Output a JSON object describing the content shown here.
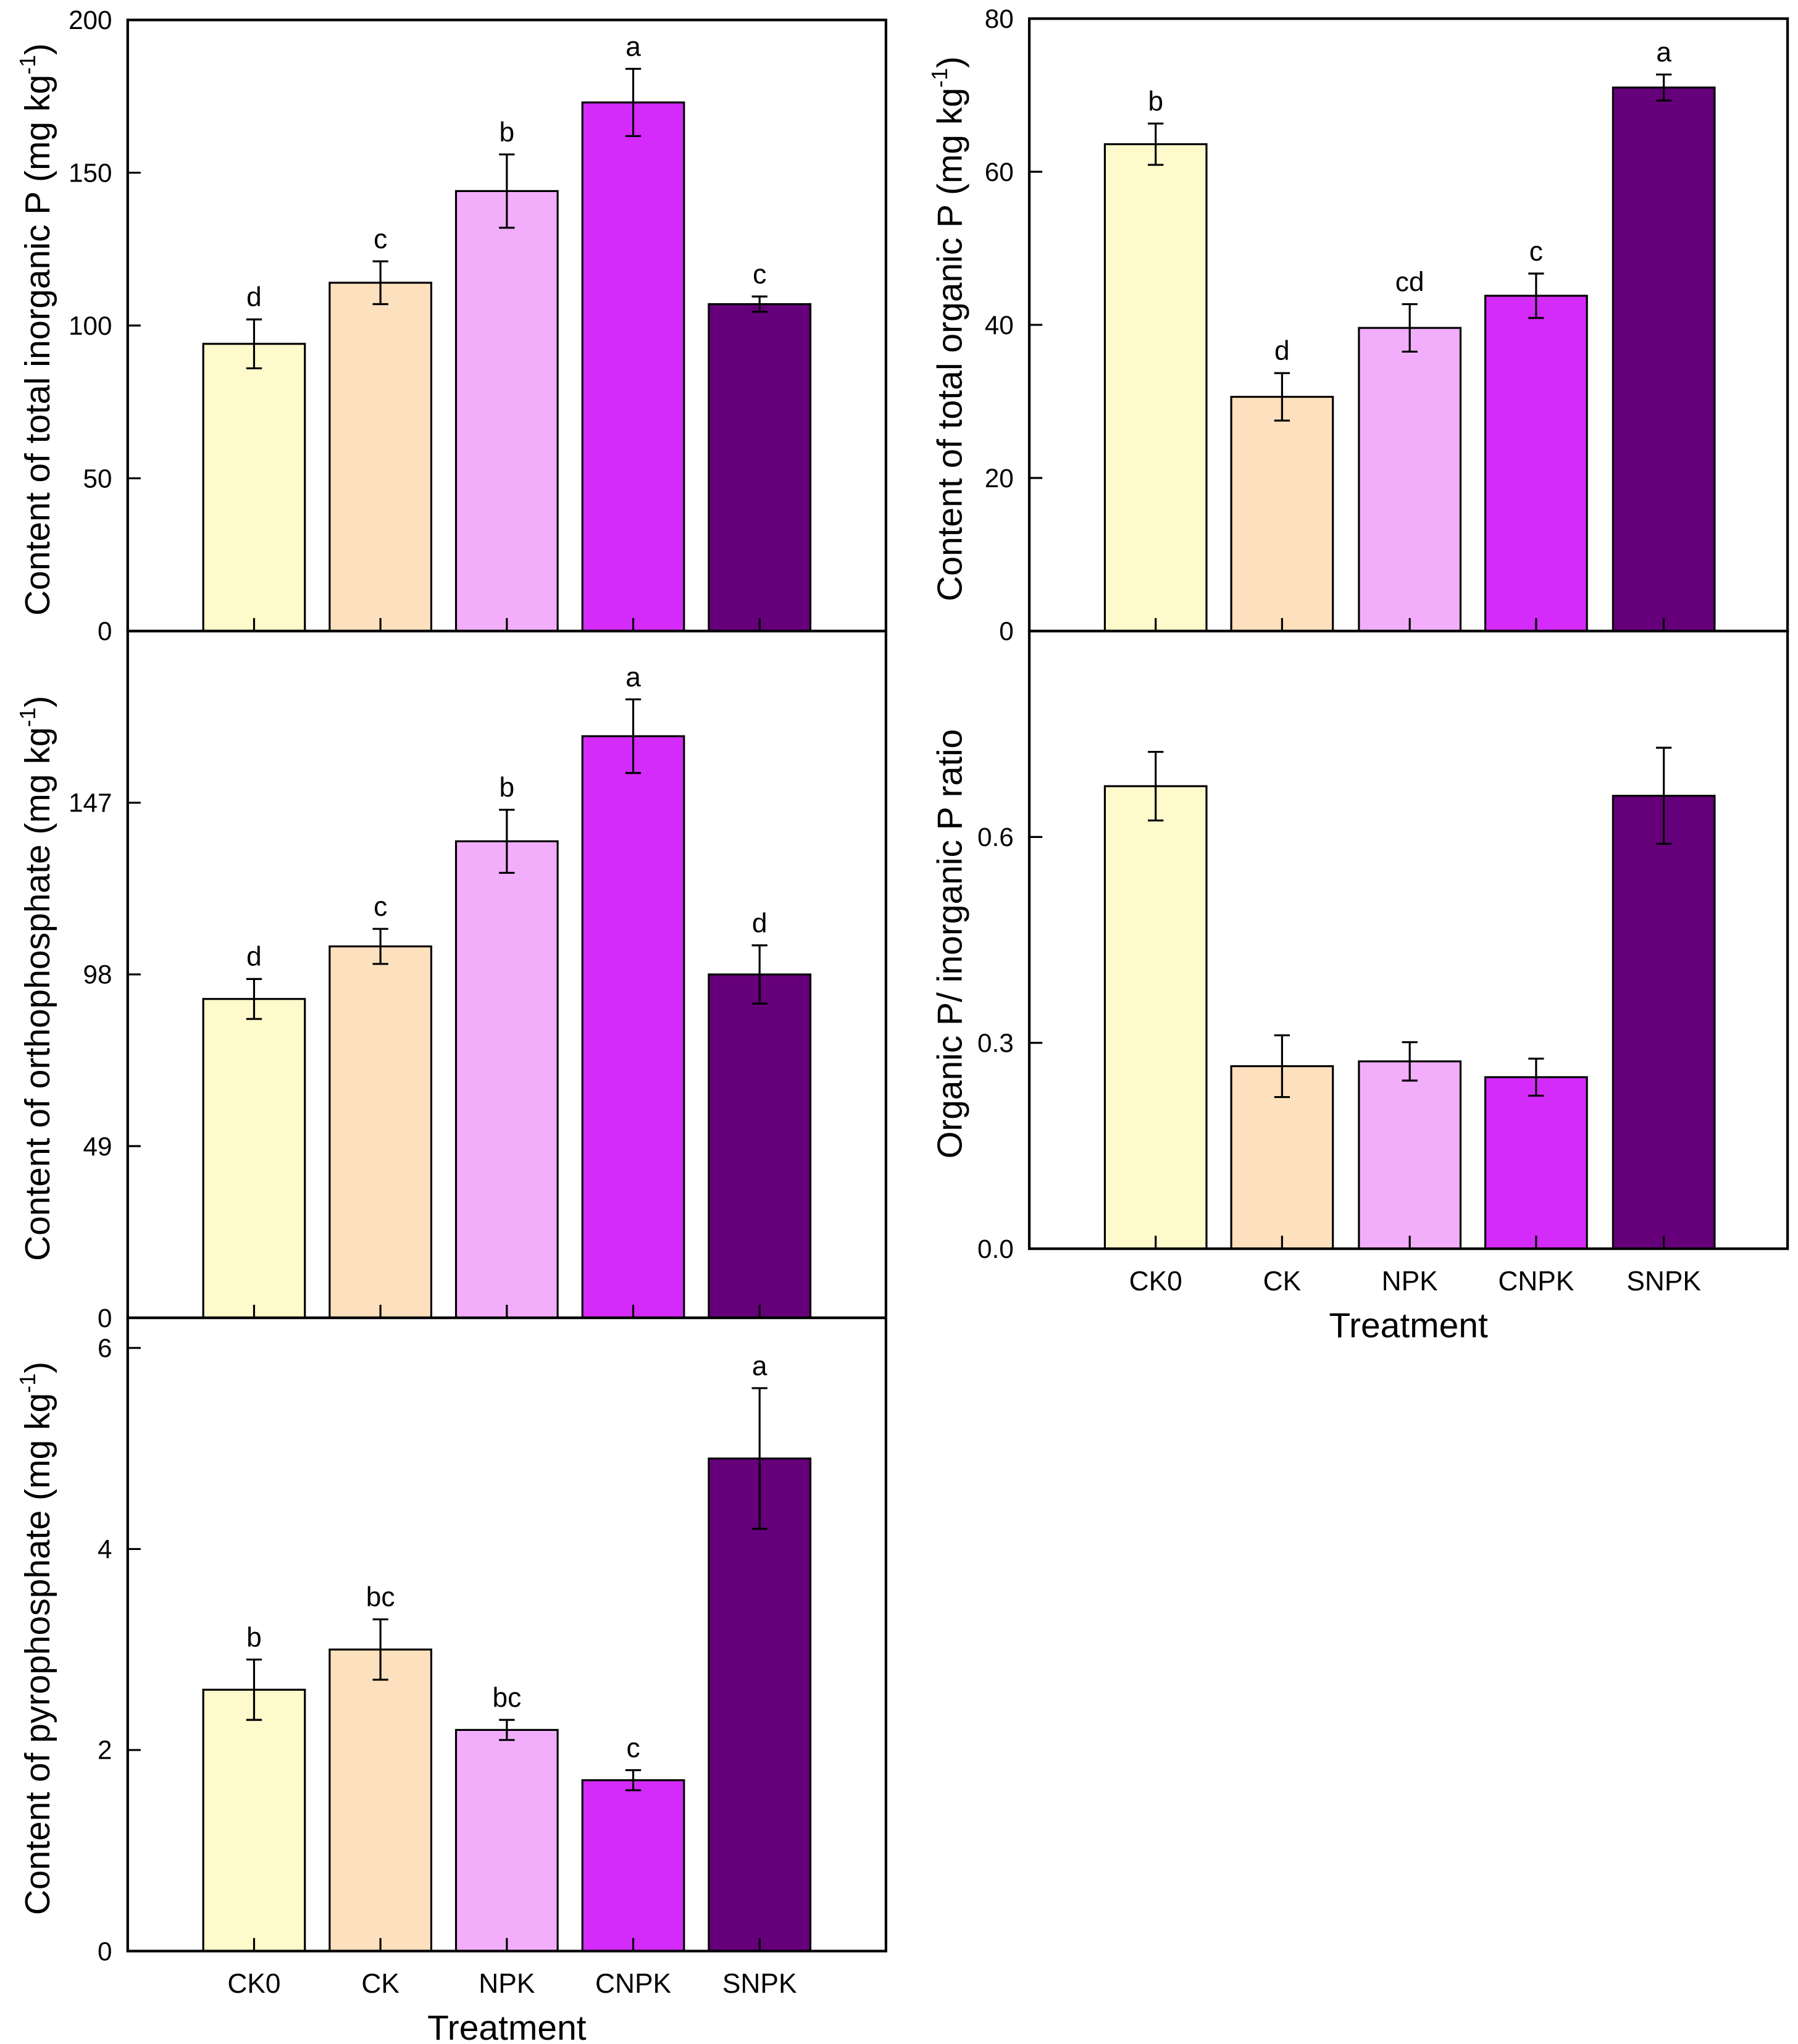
{
  "colors": [
    "#FEFACB",
    "#FDE0BD",
    "#F2AEFA",
    "#D42BFA",
    "#65007A"
  ],
  "chart_data": [
    {
      "id": "inorganic",
      "type": "bar",
      "categories": [
        "CK0",
        "CK",
        "NPK",
        "CNPK",
        "SNPK"
      ],
      "values": [
        94,
        114,
        144,
        173,
        107
      ],
      "errors": [
        8,
        7,
        12,
        11,
        2.5
      ],
      "letters": [
        "d",
        "c",
        "b",
        "a",
        "c"
      ],
      "ylim": [
        0,
        200
      ],
      "yticks": [
        0,
        50,
        100,
        150,
        200
      ],
      "ytick_labels": [
        "0",
        "50",
        "100",
        "150",
        "200"
      ],
      "ylabel": "Content of total inorganic P (mg kg",
      "ylabel_sup": "-1",
      "ylabel_end": ")",
      "xlabel": "",
      "show_xticks": false
    },
    {
      "id": "organic",
      "type": "bar",
      "categories": [
        "CK0",
        "CK",
        "NPK",
        "CNPK",
        "SNPK"
      ],
      "values": [
        63.6,
        30.6,
        39.6,
        43.8,
        71.0
      ],
      "errors": [
        2.7,
        3.1,
        3.1,
        2.9,
        1.7
      ],
      "letters": [
        "b",
        "d",
        "cd",
        "c",
        "a"
      ],
      "ylim": [
        0,
        80
      ],
      "yticks": [
        0,
        20,
        40,
        60,
        80
      ],
      "ytick_labels": [
        "0",
        "20",
        "40",
        "60",
        "80"
      ],
      "ylabel": "Content of total organic P (mg kg",
      "ylabel_sup": "-1",
      "ylabel_end": ")",
      "xlabel": "",
      "show_xticks": false
    },
    {
      "id": "orthophosphate",
      "type": "bar",
      "categories": [
        "CK0",
        "CK",
        "NPK",
        "CNPK",
        "SNPK"
      ],
      "values": [
        91,
        106,
        136,
        166,
        98
      ],
      "errors": [
        5.7,
        5,
        9,
        10.5,
        8.3
      ],
      "letters": [
        "d",
        "c",
        "b",
        "a",
        "d"
      ],
      "ylim": [
        0,
        196
      ],
      "yticks": [
        0,
        49,
        98,
        147
      ],
      "ytick_labels": [
        "0",
        "49",
        "98",
        "147"
      ],
      "ylabel": "Content of orthophosphate (mg kg",
      "ylabel_sup": "-1",
      "ylabel_end": ")",
      "xlabel": "",
      "show_xticks": false
    },
    {
      "id": "ratio",
      "type": "bar",
      "categories": [
        "CK0",
        "CK",
        "NPK",
        "CNPK",
        "SNPK"
      ],
      "values": [
        0.674,
        0.266,
        0.273,
        0.25,
        0.66
      ],
      "errors": [
        0.05,
        0.045,
        0.028,
        0.027,
        0.07
      ],
      "letters": [
        "",
        "",
        "",
        "",
        ""
      ],
      "ylim": [
        0,
        0.9
      ],
      "yticks": [
        0,
        0.3,
        0.6
      ],
      "ytick_labels": [
        "0.0",
        "0.3",
        "0.6"
      ],
      "ylabel": "Organic P/ inorganic P ratio",
      "ylabel_sup": "",
      "ylabel_end": "",
      "xlabel": "Treatment",
      "show_xticks": true
    },
    {
      "id": "pyrophosphate",
      "type": "bar",
      "categories": [
        "CK0",
        "CK",
        "NPK",
        "CNPK",
        "SNPK"
      ],
      "values": [
        2.6,
        3.0,
        2.2,
        1.7,
        4.9
      ],
      "errors": [
        0.3,
        0.3,
        0.1,
        0.1,
        0.7
      ],
      "letters": [
        "b",
        "bc",
        "bc",
        "c",
        "a"
      ],
      "ylim": [
        0,
        6.3
      ],
      "yticks": [
        0,
        2,
        4,
        6
      ],
      "ytick_labels": [
        "0",
        "2",
        "4",
        "6"
      ],
      "ylabel": "Content of pyrophosphate (mg kg",
      "ylabel_sup": "-1",
      "ylabel_end": ")",
      "xlabel": "Treatment",
      "show_xticks": true
    }
  ]
}
